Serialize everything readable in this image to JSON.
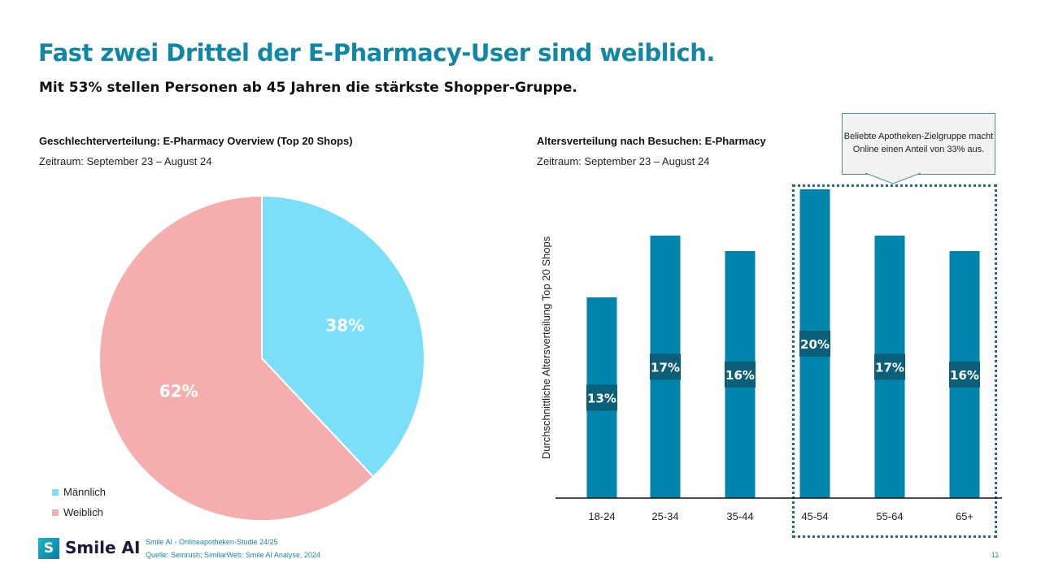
{
  "title": "Fast zwei Drittel der E-Pharmacy-User sind weiblich.",
  "subtitle": "Mit 53% stellen Personen ab 45 Jahren die stärkste Shopper-Gruppe.",
  "chart_data": [
    {
      "type": "pie",
      "title": "Geschlechterverteilung: E-Pharmacy Overview (Top 20 Shops)",
      "subtitle": "Zeitraum: September 23 – August 24",
      "slices": [
        {
          "name": "Männlich",
          "value": 38,
          "label": "38%",
          "color": "#7bdffa"
        },
        {
          "name": "Weiblich",
          "value": 62,
          "label": "62%",
          "color": "#f5aead"
        }
      ],
      "legend": "bottom-left"
    },
    {
      "type": "bar",
      "title": "Altersverteilung nach Besuchen: E-Pharmacy",
      "subtitle": "Zeitraum: September 23 – August 24",
      "ylabel": "Durchschnittliche Altersverteilung  Top 20 Shops",
      "categories": [
        "18-24",
        "25-34",
        "35-44",
        "45-54",
        "55-64",
        "65+"
      ],
      "values": [
        13,
        17,
        16,
        20,
        17,
        16
      ],
      "labels": [
        "13%",
        "17%",
        "16%",
        "20%",
        "17%",
        "16%"
      ],
      "ylim": [
        0,
        20
      ],
      "color": "#0085ad",
      "label_color": "#0c5f78",
      "annotation": "Beliebte Apotheken-Zielgruppe macht Online einen Anteil von 33% aus.",
      "highlight": [
        "45-54",
        "55-64",
        "65+"
      ]
    }
  ],
  "footer": {
    "brand": "Smile AI",
    "study": "Smile AI - Onlineapotheken-Studie 24/25",
    "source": "Quelle: Semrush; SimilarWeb; Smile AI Analyse, 2024",
    "page": "11"
  }
}
